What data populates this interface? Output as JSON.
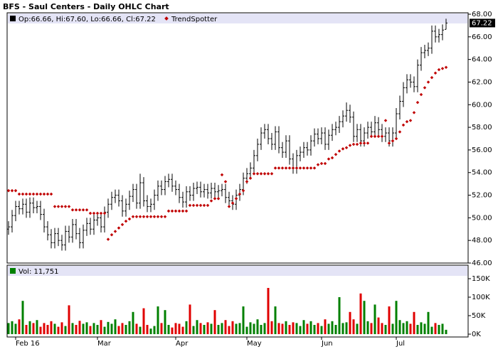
{
  "chart_data": {
    "type": "ohlc",
    "title": "BFS - Saul Centers - Daily OHLC Chart",
    "legend_text": "Op:66.66, Hi:67.60, Lo:66.66, Cl:67.22",
    "color": "#000000",
    "last_label": "67.22",
    "grid": false,
    "categories": [
      null,
      null,
      "Feb 16",
      null,
      null,
      null,
      null,
      null,
      null,
      null,
      null,
      null,
      null,
      null,
      null,
      null,
      null,
      null,
      null,
      null,
      null,
      null,
      null,
      null,
      null,
      "Mar",
      null,
      null,
      null,
      null,
      null,
      null,
      null,
      null,
      null,
      null,
      null,
      null,
      null,
      null,
      null,
      null,
      null,
      null,
      null,
      null,
      null,
      "Apr",
      null,
      null,
      null,
      null,
      null,
      null,
      null,
      null,
      null,
      null,
      null,
      null,
      null,
      null,
      null,
      null,
      null,
      null,
      null,
      "May",
      null,
      null,
      null,
      null,
      null,
      null,
      null,
      null,
      null,
      null,
      null,
      null,
      null,
      null,
      null,
      null,
      null,
      null,
      null,
      null,
      "Jun",
      null,
      null,
      null,
      null,
      null,
      null,
      null,
      null,
      null,
      null,
      null,
      null,
      null,
      null,
      null,
      null,
      null,
      null,
      null,
      null,
      "Jul",
      null,
      null,
      null,
      null,
      null,
      null,
      null,
      null,
      null,
      null,
      null,
      null,
      null,
      null
    ],
    "open": [
      49.0,
      49.2,
      50.2,
      51.0,
      50.8,
      51.2,
      50.5,
      51.3,
      50.9,
      51.0,
      50.3,
      49.2,
      48.5,
      47.8,
      48.6,
      48.0,
      47.6,
      48.8,
      48.3,
      49.4,
      48.6,
      47.8,
      48.9,
      49.5,
      49.0,
      49.8,
      50.0,
      49.2,
      50.5,
      51.2,
      51.8,
      52.0,
      51.5,
      50.6,
      51.2,
      51.9,
      52.5,
      51.3,
      53.1,
      51.5,
      51.0,
      51.2,
      52.0,
      52.8,
      52.5,
      53.2,
      53.4,
      52.8,
      52.5,
      51.8,
      51.4,
      52.3,
      52.0,
      52.6,
      52.7,
      52.3,
      52.5,
      52.2,
      52.6,
      52.3,
      52.4,
      52.5,
      51.8,
      51.5,
      51.2,
      52.0,
      52.5,
      53.5,
      53.9,
      54.4,
      55.5,
      56.5,
      57.5,
      57.8,
      57.0,
      56.5,
      57.6,
      56.2,
      55.8,
      56.8,
      55.2,
      54.4,
      55.5,
      55.8,
      56.2,
      56.0,
      56.8,
      57.4,
      57.0,
      57.5,
      56.5,
      57.3,
      57.8,
      58.0,
      58.5,
      59.0,
      59.5,
      58.9,
      57.2,
      57.8,
      56.8,
      57.5,
      58.0,
      57.6,
      58.4,
      57.8,
      57.2,
      57.5,
      56.8,
      57.5,
      59.2,
      60.3,
      61.5,
      62.2,
      62.0,
      61.6,
      63.5,
      64.6,
      64.8,
      65.0,
      66.5,
      66.0,
      66.2,
      66.66
    ],
    "high": [
      49.7,
      50.7,
      51.5,
      51.5,
      51.7,
      51.7,
      51.8,
      51.8,
      51.5,
      51.5,
      50.8,
      49.7,
      49.0,
      49.1,
      49.1,
      48.5,
      49.3,
      49.3,
      49.9,
      49.9,
      49.1,
      49.4,
      50.0,
      50.0,
      50.3,
      50.5,
      50.5,
      51.0,
      51.7,
      52.3,
      52.5,
      52.5,
      52.0,
      51.7,
      52.4,
      53.0,
      53.0,
      53.9,
      53.6,
      52.0,
      51.7,
      52.5,
      53.3,
      53.3,
      53.7,
      53.9,
      53.9,
      53.3,
      53.0,
      52.3,
      52.8,
      52.8,
      53.1,
      53.2,
      53.2,
      53.0,
      53.0,
      53.1,
      53.1,
      52.9,
      53.0,
      53.0,
      52.3,
      52.0,
      52.5,
      53.0,
      54.0,
      54.4,
      54.9,
      56.0,
      57.0,
      58.0,
      58.3,
      58.3,
      57.5,
      58.1,
      58.1,
      56.7,
      57.3,
      57.3,
      55.7,
      56.0,
      56.3,
      56.7,
      56.7,
      57.3,
      57.9,
      57.9,
      58.0,
      58.0,
      57.8,
      58.3,
      58.5,
      59.0,
      59.5,
      60.2,
      60.0,
      59.4,
      58.3,
      58.3,
      58.0,
      58.5,
      58.5,
      59.0,
      58.9,
      58.3,
      58.0,
      58.0,
      58.0,
      59.7,
      60.8,
      62.0,
      62.7,
      62.7,
      62.5,
      64.0,
      65.1,
      65.3,
      65.5,
      67.0,
      67.0,
      66.7,
      67.1,
      67.6
    ],
    "low": [
      48.5,
      48.7,
      49.7,
      50.3,
      50.3,
      50.0,
      50.0,
      50.4,
      50.4,
      49.8,
      48.7,
      48.0,
      47.3,
      47.3,
      47.5,
      47.1,
      47.1,
      47.8,
      47.8,
      48.1,
      47.3,
      47.3,
      48.4,
      48.5,
      48.5,
      49.3,
      48.7,
      48.7,
      50.0,
      50.7,
      51.3,
      51.0,
      50.1,
      50.1,
      50.7,
      51.4,
      50.8,
      50.8,
      51.0,
      50.5,
      50.5,
      50.7,
      51.5,
      52.0,
      52.0,
      52.7,
      52.3,
      52.0,
      51.3,
      50.9,
      50.9,
      51.5,
      51.5,
      52.1,
      51.8,
      51.8,
      51.7,
      51.7,
      51.8,
      51.8,
      51.9,
      51.3,
      51.0,
      50.7,
      50.7,
      51.5,
      52.0,
      53.0,
      53.4,
      53.9,
      55.0,
      56.0,
      57.0,
      56.5,
      56.0,
      56.0,
      55.7,
      55.3,
      55.3,
      54.7,
      53.9,
      53.9,
      55.0,
      55.3,
      55.5,
      55.5,
      56.3,
      56.5,
      56.5,
      56.0,
      56.0,
      56.8,
      57.3,
      57.5,
      58.0,
      58.5,
      58.4,
      56.7,
      56.7,
      56.3,
      56.3,
      57.0,
      57.1,
      57.1,
      57.3,
      56.7,
      56.7,
      56.3,
      56.3,
      57.0,
      58.7,
      59.8,
      61.0,
      61.5,
      61.1,
      61.1,
      63.0,
      64.1,
      64.3,
      64.5,
      65.5,
      65.5,
      65.7,
      66.66
    ],
    "close": [
      49.2,
      50.2,
      51.0,
      50.8,
      51.2,
      50.5,
      51.3,
      50.9,
      51.0,
      50.3,
      49.2,
      48.5,
      47.8,
      48.6,
      48.0,
      47.6,
      48.8,
      48.3,
      49.4,
      48.6,
      47.8,
      48.9,
      49.5,
      49.0,
      49.8,
      50.0,
      49.2,
      50.5,
      51.2,
      51.8,
      52.0,
      51.5,
      50.6,
      51.2,
      51.9,
      52.5,
      51.3,
      53.1,
      51.5,
      51.0,
      51.2,
      52.0,
      52.8,
      52.5,
      53.2,
      53.4,
      52.8,
      52.5,
      51.8,
      51.4,
      52.3,
      52.0,
      52.6,
      52.7,
      52.3,
      52.5,
      52.2,
      52.6,
      52.3,
      52.4,
      52.5,
      51.8,
      51.5,
      51.2,
      52.0,
      52.5,
      53.5,
      53.9,
      54.4,
      55.5,
      56.5,
      57.5,
      57.8,
      57.0,
      56.5,
      57.6,
      56.2,
      55.8,
      56.8,
      55.2,
      54.4,
      55.5,
      55.8,
      56.2,
      56.0,
      56.8,
      57.4,
      57.0,
      57.5,
      56.5,
      57.3,
      57.8,
      58.0,
      58.5,
      59.0,
      59.5,
      58.9,
      57.2,
      57.8,
      56.8,
      57.5,
      58.0,
      57.6,
      58.4,
      57.8,
      57.2,
      57.5,
      56.8,
      57.5,
      59.2,
      60.3,
      61.5,
      62.2,
      62.0,
      61.6,
      63.5,
      64.6,
      64.8,
      65.0,
      66.5,
      66.0,
      66.2,
      66.6,
      67.22
    ],
    "ylim": [
      46,
      68
    ],
    "yticks": [
      {
        "value": 46,
        "label": "46.00"
      },
      {
        "value": 48,
        "label": "48.00"
      },
      {
        "value": 50,
        "label": "50.00"
      },
      {
        "value": 52,
        "label": "52.00"
      },
      {
        "value": 54,
        "label": "54.00"
      },
      {
        "value": 56,
        "label": "56.00"
      },
      {
        "value": 58,
        "label": "58.00"
      },
      {
        "value": 60,
        "label": "60.00"
      },
      {
        "value": 62,
        "label": "62.00"
      },
      {
        "value": 64,
        "label": "64.00"
      },
      {
        "value": 66,
        "label": "66.00"
      },
      {
        "value": 68,
        "label": "68.00"
      }
    ],
    "trend": {
      "name": "TrendSpotter",
      "color": "#c00000",
      "values": [
        52.4,
        52.4,
        52.4,
        52.1,
        52.1,
        52.1,
        52.1,
        52.1,
        52.1,
        52.1,
        52.1,
        52.1,
        52.1,
        51.0,
        51.0,
        51.0,
        51.0,
        51.0,
        50.7,
        50.7,
        50.7,
        50.7,
        50.7,
        50.4,
        50.4,
        50.4,
        50.4,
        50.4,
        48.1,
        48.5,
        48.8,
        49.1,
        49.4,
        49.7,
        49.9,
        50.1,
        50.1,
        50.1,
        50.1,
        50.1,
        50.1,
        50.1,
        50.1,
        50.1,
        50.1,
        50.6,
        50.6,
        50.6,
        50.6,
        50.6,
        50.6,
        51.1,
        51.1,
        51.1,
        51.1,
        51.1,
        51.1,
        51.5,
        51.7,
        51.7,
        53.8,
        53.2,
        51.0,
        51.3,
        51.7,
        52.1,
        52.4,
        53.2,
        53.5,
        53.9,
        53.9,
        53.9,
        53.9,
        53.9,
        53.9,
        54.4,
        54.4,
        54.4,
        54.4,
        54.4,
        54.4,
        54.4,
        54.4,
        54.4,
        54.4,
        54.4,
        54.4,
        54.7,
        54.8,
        54.8,
        55.2,
        55.3,
        55.6,
        55.9,
        56.1,
        56.2,
        56.4,
        56.5,
        56.5,
        56.6,
        56.6,
        56.6,
        57.2,
        57.2,
        57.2,
        57.2,
        58.6,
        56.6,
        56.8,
        57.0,
        57.6,
        58.2,
        58.5,
        58.6,
        59.3,
        60.2,
        60.9,
        61.5,
        62.0,
        62.4,
        62.8,
        63.1,
        63.2,
        63.3
      ]
    },
    "volume": {
      "type": "bar",
      "label": "Vol: 11,751",
      "up_color": "#008000",
      "down_color": "#e00000",
      "values": [
        30000,
        35000,
        28000,
        40000,
        90000,
        25000,
        35000,
        30000,
        38000,
        20000,
        30000,
        25000,
        35000,
        28000,
        20000,
        32000,
        22000,
        78000,
        30000,
        25000,
        36000,
        28000,
        32000,
        22000,
        30000,
        25000,
        38000,
        20000,
        33000,
        28000,
        40000,
        22000,
        30000,
        25000,
        35000,
        60000,
        28000,
        20000,
        70000,
        25000,
        15000,
        22000,
        75000,
        30000,
        65000,
        25000,
        18000,
        30000,
        28000,
        20000,
        35000,
        80000,
        22000,
        38000,
        30000,
        25000,
        32000,
        28000,
        65000,
        25000,
        30000,
        38000,
        22000,
        35000,
        28000,
        30000,
        75000,
        20000,
        32000,
        28000,
        40000,
        25000,
        30000,
        125000,
        35000,
        75000,
        30000,
        28000,
        35000,
        25000,
        32000,
        30000,
        22000,
        38000,
        28000,
        35000,
        25000,
        30000,
        22000,
        40000,
        28000,
        35000,
        25000,
        100000,
        30000,
        32000,
        60000,
        40000,
        28000,
        110000,
        90000,
        35000,
        30000,
        80000,
        45000,
        30000,
        25000,
        75000,
        28000,
        90000,
        38000,
        30000,
        35000,
        28000,
        60000,
        25000,
        32000,
        28000,
        60000,
        20000,
        30000,
        25000,
        28000,
        11751
      ],
      "ylim": [
        0,
        150000
      ],
      "yticks": [
        {
          "value": 0,
          "label": "0K"
        },
        {
          "value": 50000,
          "label": "50K"
        },
        {
          "value": 100000,
          "label": "100K"
        },
        {
          "value": 150000,
          "label": "150K"
        }
      ]
    }
  }
}
